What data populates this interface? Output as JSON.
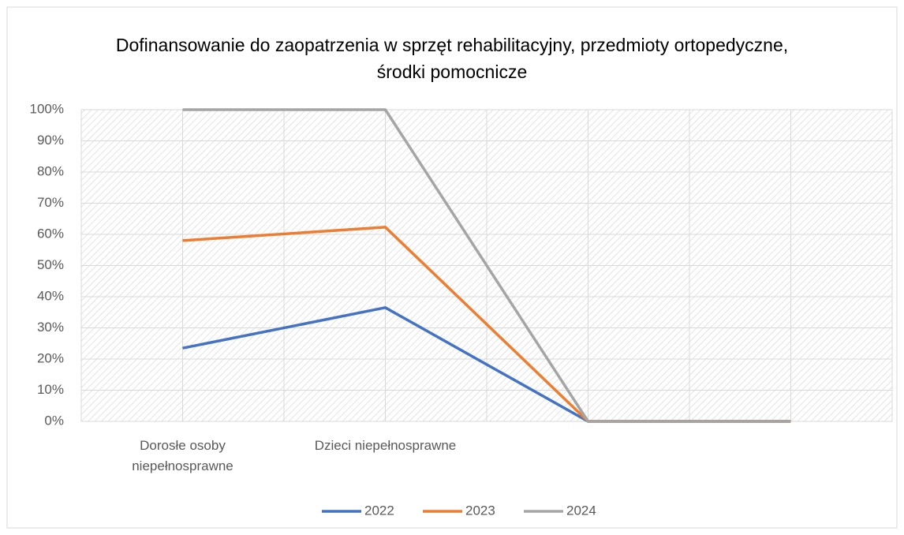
{
  "chart_data": {
    "type": "line",
    "title": "Dofinansowanie do zaopatrzenia w sprzęt rehabilitacyjny, przedmioty ortopedyczne, środki pomocnicze",
    "categories": [
      "Dorosłe osoby niepełnosprawne",
      "Dzieci niepełnosprawne",
      null,
      null
    ],
    "series": [
      {
        "name": "2022",
        "color": "#4472c4",
        "values": [
          23.5,
          36.5,
          0,
          0
        ]
      },
      {
        "name": "2023",
        "color": "#ed7d31",
        "values": [
          58,
          62.3,
          0,
          0
        ]
      },
      {
        "name": "2024",
        "color": "#a5a5a5",
        "values": [
          100,
          100,
          0,
          0
        ]
      }
    ],
    "ylim": [
      0,
      100
    ],
    "yticks": [
      {
        "value": 0,
        "label": "0%"
      },
      {
        "value": 10,
        "label": "10%"
      },
      {
        "value": 20,
        "label": "20%"
      },
      {
        "value": 30,
        "label": "30%"
      },
      {
        "value": 40,
        "label": "40%"
      },
      {
        "value": 50,
        "label": "50%"
      },
      {
        "value": 60,
        "label": "60%"
      },
      {
        "value": 70,
        "label": "70%"
      },
      {
        "value": 80,
        "label": "80%"
      },
      {
        "value": 90,
        "label": "90%"
      },
      {
        "value": 100,
        "label": "100%"
      }
    ],
    "grid": true,
    "legend": "bottom"
  }
}
